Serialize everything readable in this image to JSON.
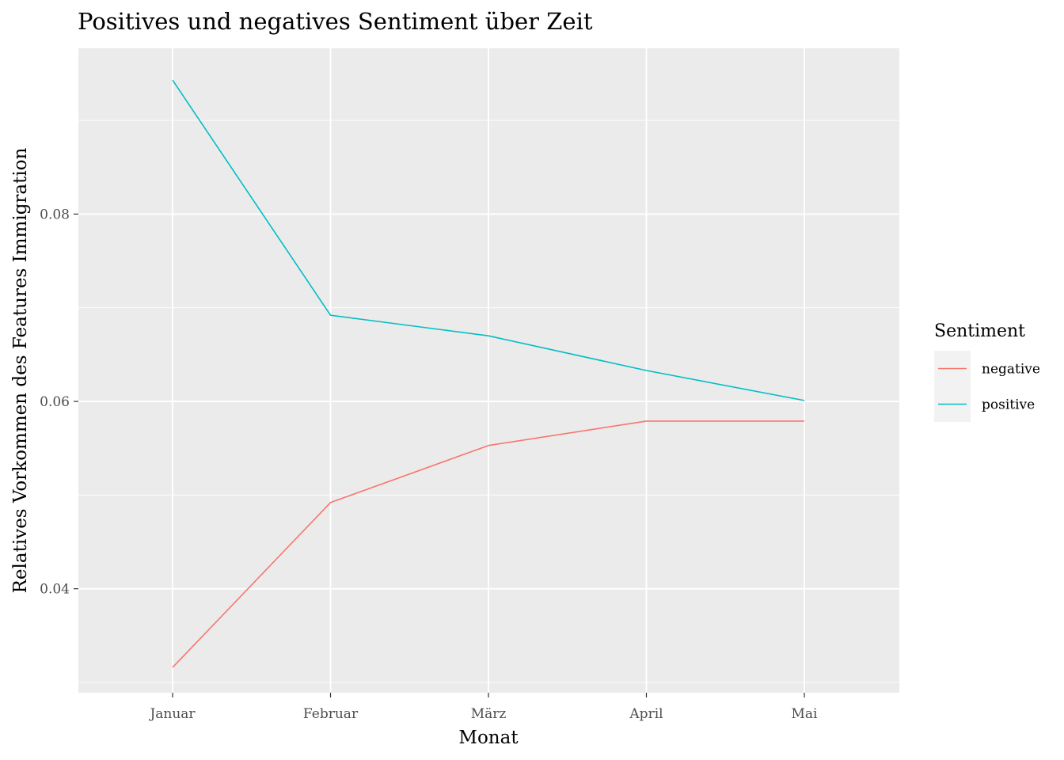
{
  "chart_data": {
    "type": "line",
    "title": "Positives und negatives Sentiment über Zeit",
    "xlabel": "Monat",
    "ylabel": "Relatives Vorkommen des Features Immigration",
    "categories": [
      "Januar",
      "Februar",
      "März",
      "April",
      "Mai"
    ],
    "y_ticks": [
      0.04,
      0.06,
      0.08
    ],
    "y_tick_labels": [
      "0.04",
      "0.06",
      "0.08"
    ],
    "ylim": [
      0.0289,
      0.0977
    ],
    "grid": true,
    "legend": {
      "title": "Sentiment",
      "placement": "right"
    },
    "series": [
      {
        "name": "negative",
        "color": "#F8766D",
        "values": [
          0.0316,
          0.0492,
          0.0553,
          0.0579,
          0.0579
        ]
      },
      {
        "name": "positive",
        "color": "#00BFC4",
        "values": [
          0.0943,
          0.0692,
          0.067,
          0.0633,
          0.0601
        ]
      }
    ],
    "colors": {
      "panel_background": "#EBEBEB",
      "grid": "#FFFFFF",
      "tick_label": "#4D4D4D",
      "legend_key_background": "#F2F2F2"
    }
  }
}
